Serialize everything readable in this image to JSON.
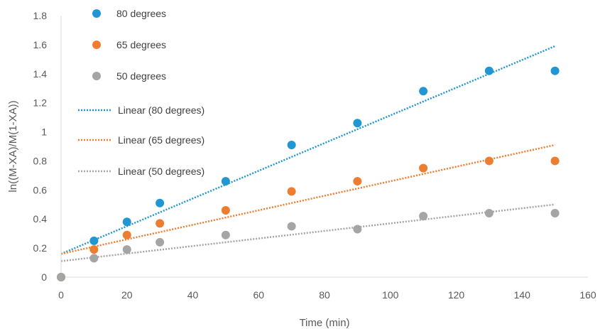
{
  "chart_data": {
    "type": "scatter",
    "title": "",
    "xlabel": "Time (min)",
    "ylabel": "ln((M-XA)/M(1-XA))",
    "xlim": [
      0,
      160
    ],
    "ylim": [
      0,
      1.8
    ],
    "xticks": [
      0,
      20,
      40,
      60,
      80,
      100,
      120,
      140,
      160
    ],
    "yticks": [
      0,
      0.2,
      0.4,
      0.6,
      0.8,
      1,
      1.2,
      1.4,
      1.6,
      1.8
    ],
    "ytick_labels": [
      "0",
      "0.2",
      "0.4",
      "0.6",
      "0.8",
      "1",
      "1.2",
      "1.4",
      "1.6",
      "1.8"
    ],
    "grid": false,
    "legend_position": "top-left",
    "x": [
      0,
      10,
      20,
      30,
      50,
      70,
      90,
      110,
      130,
      150
    ],
    "series": [
      {
        "name": "80 degrees",
        "color": "#2196d3",
        "values": [
          0,
          0.25,
          0.38,
          0.51,
          0.66,
          0.91,
          1.06,
          1.28,
          1.42,
          1.42
        ]
      },
      {
        "name": "65 degrees",
        "color": "#ed7d31",
        "values": [
          0,
          0.19,
          0.29,
          0.37,
          0.46,
          0.59,
          0.66,
          0.75,
          0.8,
          0.8
        ]
      },
      {
        "name": "50 degrees",
        "color": "#a5a5a5",
        "values": [
          0,
          0.13,
          0.19,
          0.24,
          0.29,
          0.35,
          0.33,
          0.42,
          0.44,
          0.44
        ]
      }
    ],
    "trendlines": [
      {
        "name": "Linear (80 degrees)",
        "color": "#2196d3",
        "x_range": [
          0,
          150
        ],
        "y_start": 0.16,
        "y_end": 1.59
      },
      {
        "name": "Linear (65 degrees)",
        "color": "#ed7d31",
        "x_range": [
          0,
          150
        ],
        "y_start": 0.16,
        "y_end": 0.91
      },
      {
        "name": "Linear (50 degrees)",
        "color": "#a5a5a5",
        "x_range": [
          0,
          150
        ],
        "y_start": 0.11,
        "y_end": 0.5
      }
    ]
  }
}
